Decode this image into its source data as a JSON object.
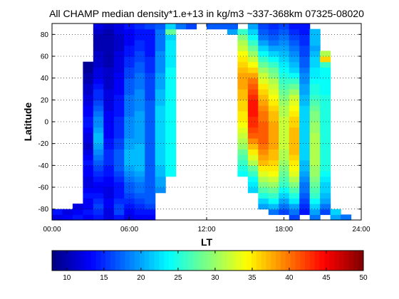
{
  "chart_data": {
    "type": "heatmap",
    "title": "All CHAMP median density*1.e+13 in kg/m3 ~337-368km 07325-08020",
    "xlabel": "LT",
    "ylabel": "Latitude",
    "xlim": [
      0,
      24
    ],
    "ylim": [
      -90,
      90
    ],
    "x_tick_labels": [
      "00:00",
      "06:00",
      "12:00",
      "18:00",
      "24:00"
    ],
    "x_tick_values": [
      0,
      6,
      12,
      18,
      24
    ],
    "y_tick_labels": [
      "-80",
      "-60",
      "-40",
      "-20",
      "0",
      "20",
      "40",
      "60",
      "80"
    ],
    "y_tick_values": [
      -80,
      -60,
      -40,
      -20,
      0,
      20,
      40,
      60,
      80
    ],
    "grid": true,
    "colormap": "jet",
    "colorbar": {
      "orientation": "horizontal",
      "range": [
        8,
        50
      ],
      "tick_labels": [
        "10",
        "15",
        "20",
        "25",
        "30",
        "35",
        "40",
        "45",
        "50"
      ],
      "tick_values": [
        10,
        15,
        20,
        25,
        30,
        35,
        40,
        45,
        50
      ]
    },
    "cell_size": {
      "lt_hours": 0.8,
      "latitude_deg": 5
    },
    "columns": [
      {
        "lt": 0.0,
        "lat_min": -90,
        "lat_max": -80,
        "values": [
          12,
          14
        ]
      },
      {
        "lt": 0.8,
        "lat_min": -90,
        "lat_max": -80,
        "values": [
          13,
          12
        ]
      },
      {
        "lt": 1.6,
        "lat_min": -90,
        "lat_max": -75,
        "values": [
          14,
          13,
          12
        ]
      },
      {
        "lt": 2.4,
        "lat_min": -90,
        "lat_max": 55,
        "values": [
          13,
          14,
          13,
          13,
          14,
          13,
          12,
          12,
          13,
          13,
          14,
          13,
          12,
          11,
          12,
          12,
          13,
          14,
          14,
          13,
          13,
          12,
          12,
          11,
          11,
          10,
          10,
          9,
          9
        ]
      },
      {
        "lt": 3.2,
        "lat_min": -90,
        "lat_max": 90,
        "values": [
          14,
          15,
          16,
          15,
          14,
          13,
          13,
          14,
          15,
          16,
          17,
          18,
          19,
          20,
          21,
          21,
          20,
          19,
          19,
          18,
          17,
          16,
          15,
          15,
          14,
          13,
          12,
          12,
          11,
          11,
          11,
          10,
          10,
          10,
          11,
          12
        ]
      },
      {
        "lt": 4.0,
        "lat_min": -90,
        "lat_max": 90,
        "values": [
          12,
          12,
          13,
          13,
          12,
          12,
          13,
          13,
          14,
          14,
          15,
          15,
          15,
          14,
          14,
          13,
          13,
          13,
          13,
          13,
          12,
          12,
          12,
          12,
          11,
          11,
          11,
          11,
          10,
          10,
          10,
          10,
          10,
          10,
          10,
          11
        ]
      },
      {
        "lt": 4.8,
        "lat_min": -90,
        "lat_max": 90,
        "values": [
          14,
          16,
          16,
          15,
          14,
          14,
          14,
          15,
          16,
          17,
          17,
          17,
          17,
          16,
          16,
          15,
          15,
          15,
          15,
          14,
          14,
          14,
          14,
          13,
          13,
          13,
          13,
          12,
          12,
          12,
          12,
          11,
          11,
          11,
          12,
          12
        ]
      },
      {
        "lt": 5.6,
        "lat_min": -90,
        "lat_max": 90,
        "values": [
          12,
          13,
          14,
          15,
          16,
          17,
          17,
          18,
          19,
          20,
          21,
          21,
          21,
          20,
          20,
          19,
          19,
          19,
          19,
          18,
          18,
          18,
          18,
          17,
          17,
          17,
          16,
          16,
          15,
          15,
          14,
          14,
          13,
          13,
          13,
          14
        ]
      },
      {
        "lt": 6.4,
        "lat_min": -90,
        "lat_max": 90,
        "values": [
          13,
          14,
          15,
          16,
          17,
          18,
          18,
          19,
          20,
          21,
          21,
          21,
          21,
          21,
          20,
          20,
          20,
          20,
          20,
          20,
          19,
          19,
          19,
          19,
          18,
          18,
          18,
          17,
          17,
          16,
          16,
          15,
          15,
          14,
          14,
          15
        ]
      },
      {
        "lt": 7.2,
        "lat_min": -90,
        "lat_max": 90,
        "values": [
          13,
          14,
          16,
          17,
          17,
          17,
          17,
          17,
          17,
          17,
          17,
          17,
          17,
          17,
          17,
          17,
          17,
          17,
          17,
          17,
          17,
          17,
          16,
          16,
          16,
          16,
          16,
          15,
          15,
          15,
          14,
          14,
          14,
          14,
          14,
          16
        ]
      },
      {
        "lt": 8.0,
        "lat_min": -65,
        "lat_max": 90,
        "values": [
          19,
          20,
          20,
          21,
          21,
          22,
          22,
          22,
          22,
          22,
          22,
          22,
          22,
          22,
          22,
          22,
          21,
          21,
          21,
          20,
          20,
          20,
          19,
          19,
          19,
          19,
          18,
          18,
          18,
          18,
          17
        ]
      },
      {
        "lt": 8.8,
        "lat_min": -50,
        "lat_max": 90,
        "values": [
          24,
          24,
          24,
          24,
          24,
          24,
          24,
          24,
          24,
          24,
          24,
          24,
          24,
          24,
          24,
          24,
          24,
          24,
          24,
          24,
          23,
          23,
          23,
          23,
          23,
          22,
          28,
          22
        ]
      },
      {
        "lt": 9.6,
        "lat_min": 85,
        "lat_max": 90,
        "values": [
          18
        ]
      },
      {
        "lt": 10.4,
        "lat_min": 85,
        "lat_max": 90,
        "values": [
          16
        ]
      },
      {
        "lt": 12.0,
        "lat_min": 85,
        "lat_max": 90,
        "values": [
          17
        ]
      },
      {
        "lt": 12.8,
        "lat_min": 85,
        "lat_max": 90,
        "values": [
          17
        ]
      },
      {
        "lt": 13.6,
        "lat_min": 80,
        "lat_max": 90,
        "values": [
          20,
          17
        ]
      },
      {
        "lt": 14.4,
        "lat_min": -50,
        "lat_max": 85,
        "values": [
          24,
          25,
          26,
          27,
          28,
          30,
          31,
          32,
          33,
          34,
          35,
          35,
          36,
          36,
          37,
          37,
          38,
          38,
          38,
          37,
          36,
          35,
          34,
          32,
          31,
          29,
          26
        ]
      },
      {
        "lt": 15.2,
        "lat_min": -65,
        "lat_max": 90,
        "values": [
          22,
          23,
          24,
          26,
          28,
          31,
          33,
          35,
          37,
          39,
          41,
          42,
          43,
          43,
          44,
          44,
          44,
          43,
          42,
          41,
          40,
          38,
          36,
          34,
          32,
          30,
          28,
          26,
          24,
          22,
          20
        ]
      },
      {
        "lt": 16.0,
        "lat_min": -80,
        "lat_max": 90,
        "values": [
          20,
          22,
          25,
          27,
          29,
          31,
          33,
          35,
          37,
          38,
          39,
          40,
          41,
          41,
          41,
          41,
          40,
          40,
          39,
          38,
          37,
          36,
          35,
          33,
          32,
          30,
          28,
          26,
          24,
          22,
          20,
          18,
          17,
          16
        ]
      },
      {
        "lt": 16.8,
        "lat_min": -85,
        "lat_max": 90,
        "values": [
          18,
          21,
          24,
          26,
          28,
          30,
          32,
          34,
          35,
          36,
          37,
          37,
          38,
          38,
          38,
          38,
          38,
          37,
          37,
          36,
          35,
          34,
          33,
          32,
          31,
          29,
          28,
          26,
          24,
          22,
          20,
          18,
          17,
          16,
          15
        ]
      },
      {
        "lt": 17.6,
        "lat_min": -85,
        "lat_max": 90,
        "values": [
          16,
          18,
          20,
          22,
          24,
          26,
          27,
          28,
          29,
          30,
          31,
          31,
          32,
          32,
          32,
          32,
          32,
          32,
          31,
          31,
          30,
          29,
          28,
          27,
          26,
          25,
          24,
          23,
          22,
          21,
          20,
          19,
          18,
          17,
          16
        ]
      },
      {
        "lt": 18.4,
        "lat_min": -90,
        "lat_max": 90,
        "values": [
          16,
          18,
          20,
          23,
          25,
          27,
          29,
          31,
          33,
          34,
          35,
          36,
          37,
          37,
          37,
          37,
          37,
          36,
          36,
          35,
          34,
          33,
          32,
          30,
          28,
          26,
          24,
          22,
          21,
          20,
          19,
          18,
          17,
          16,
          15,
          14
        ]
      },
      {
        "lt": 19.2,
        "lat_min": -85,
        "lat_max": 90,
        "values": [
          14,
          15,
          16,
          17,
          18,
          18,
          19,
          20,
          21,
          21,
          22,
          22,
          22,
          22,
          22,
          22,
          22,
          22,
          22,
          22,
          21,
          21,
          20,
          20,
          19,
          19,
          18,
          17,
          17,
          16,
          16,
          15,
          15,
          14,
          14
        ]
      },
      {
        "lt": 20.0,
        "lat_min": -90,
        "lat_max": 85,
        "values": [
          18,
          20,
          22,
          24,
          26,
          27,
          28,
          29,
          30,
          30,
          31,
          31,
          31,
          31,
          31,
          31,
          30,
          30,
          29,
          29,
          28,
          27,
          26,
          25,
          25,
          24,
          23,
          23,
          22,
          22,
          21,
          20,
          21,
          21,
          21
        ]
      },
      {
        "lt": 20.8,
        "lat_min": -85,
        "lat_max": 65,
        "values": [
          16,
          18,
          20,
          21,
          22,
          22,
          23,
          24,
          25,
          25,
          25,
          25,
          25,
          25,
          25,
          25,
          25,
          25,
          25,
          25,
          25,
          25,
          24,
          24,
          24,
          24,
          24,
          26,
          36,
          31
        ]
      },
      {
        "lt": 21.6,
        "lat_min": -90,
        "lat_max": -80,
        "values": [
          20,
          22
        ]
      },
      {
        "lt": 22.4,
        "lat_min": -90,
        "lat_max": -85,
        "values": [
          18
        ]
      }
    ]
  }
}
